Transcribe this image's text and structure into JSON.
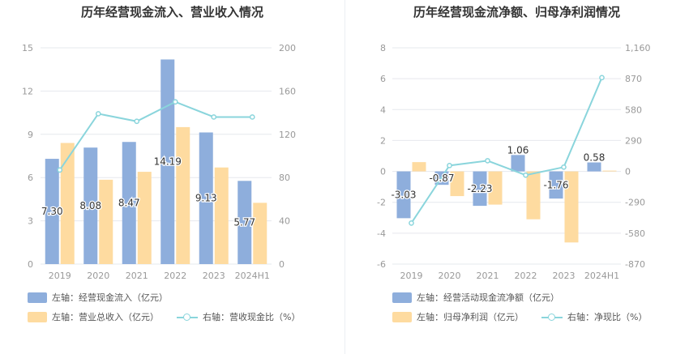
{
  "left_title": "历年经营现金流入、营业收入情况",
  "right_title": "历年经营现金流净额、归母净利润情况",
  "colors": {
    "bar_blue": "#8eaedc",
    "bar_orange": "#fedba0",
    "line_teal": "#8ad5dc"
  },
  "legends": {
    "left": [
      {
        "label": "左轴：经营现金流入（亿元）",
        "kind": "bar-blue"
      },
      {
        "label": "左轴：营业总收入（亿元）",
        "kind": "bar-orange"
      },
      {
        "label": "右轴：营收现金比（%）",
        "kind": "line"
      }
    ],
    "right": [
      {
        "label": "左轴：经营活动现金流净额（亿元）",
        "kind": "bar-blue"
      },
      {
        "label": "左轴：归母净利润（亿元）",
        "kind": "bar-orange"
      },
      {
        "label": "右轴：净现比（%）",
        "kind": "line"
      }
    ]
  },
  "chart_data": [
    {
      "type": "bar",
      "title": "历年经营现金流入、营业收入情况",
      "categories": [
        "2019",
        "2020",
        "2021",
        "2022",
        "2023",
        "2024H1"
      ],
      "y_left": {
        "ticks": [
          "0",
          "3",
          "6",
          "9",
          "12",
          "15"
        ],
        "min": 0,
        "max": 15
      },
      "y_right": {
        "ticks": [
          "0",
          "40",
          "80",
          "120",
          "160",
          "200"
        ],
        "min": 0,
        "max": 200
      },
      "grid": true,
      "legend_position": "bottom-left",
      "series": [
        {
          "name": "左轴：经营现金流入（亿元）",
          "type": "bar",
          "axis": "left",
          "color": "#8eaedc",
          "values": [
            7.3,
            8.08,
            8.47,
            14.19,
            9.13,
            5.77
          ],
          "labels": [
            "7.30",
            "8.08",
            "8.47",
            "14.19",
            "9.13",
            "5.77"
          ]
        },
        {
          "name": "左轴：营业总收入（亿元）",
          "type": "bar",
          "axis": "left",
          "color": "#fedba0",
          "values": [
            8.4,
            5.85,
            6.4,
            9.5,
            6.7,
            4.25
          ]
        },
        {
          "name": "右轴：营收现金比（%）",
          "type": "line",
          "axis": "right",
          "color": "#8ad5dc",
          "values": [
            87,
            139,
            132,
            150,
            136,
            136
          ]
        }
      ]
    },
    {
      "type": "bar",
      "title": "历年经营现金流净额、归母净利润情况",
      "categories": [
        "2019",
        "2020",
        "2021",
        "2022",
        "2023",
        "2024H1"
      ],
      "y_left": {
        "ticks": [
          "-6",
          "-4",
          "-2",
          "0",
          "2",
          "4",
          "6",
          "8"
        ],
        "min": -6,
        "max": 8
      },
      "y_right": {
        "ticks": [
          "-870",
          "-580",
          "-290",
          "0",
          "290",
          "580",
          "870",
          "1,160"
        ],
        "min": -870,
        "max": 1160
      },
      "grid": true,
      "legend_position": "bottom-left",
      "series": [
        {
          "name": "左轴：经营活动现金流净额（亿元）",
          "type": "bar",
          "axis": "left",
          "color": "#8eaedc",
          "values": [
            -3.03,
            -0.87,
            -2.23,
            1.06,
            -1.76,
            0.58
          ],
          "labels": [
            "-3.03",
            "-0.87",
            "-2.23",
            "1.06",
            "-1.76",
            "0.58"
          ]
        },
        {
          "name": "左轴：归母净利润（亿元）",
          "type": "bar",
          "axis": "left",
          "color": "#fedba0",
          "values": [
            0.6,
            -1.6,
            -2.15,
            -3.1,
            -4.6,
            0.05
          ]
        },
        {
          "name": "右轴：净现比（%）",
          "type": "line",
          "axis": "right",
          "color": "#8ad5dc",
          "values": [
            -485,
            55,
            100,
            -35,
            40,
            880
          ]
        }
      ]
    }
  ]
}
